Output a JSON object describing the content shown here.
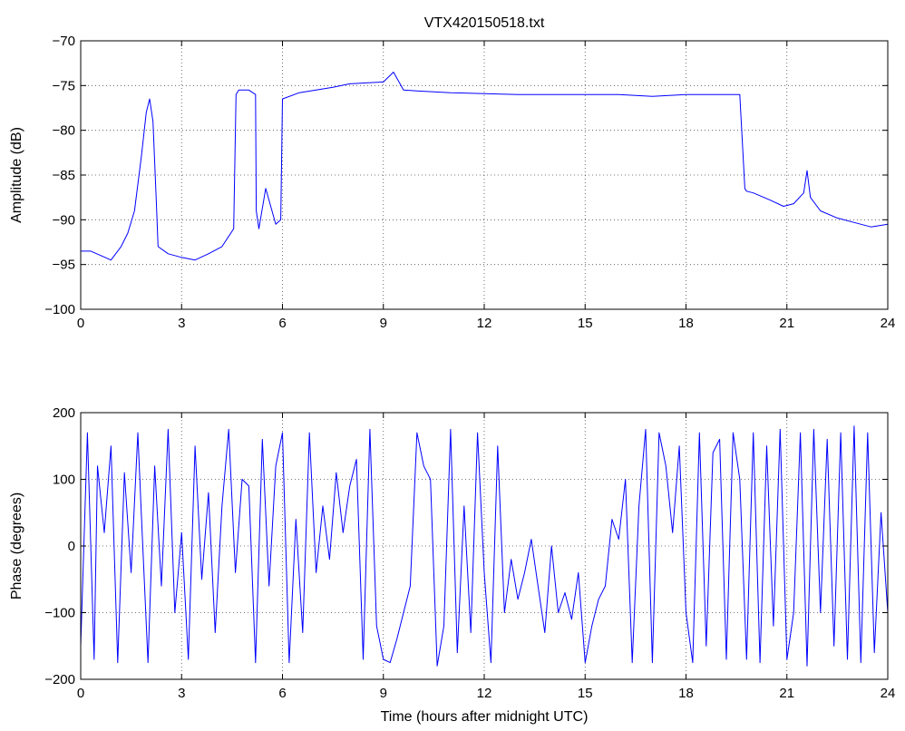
{
  "chart_data": [
    {
      "type": "line",
      "title": "VTX420150518.txt",
      "xlabel": "",
      "ylabel": "Amplitude (dB)",
      "xlim": [
        0,
        24
      ],
      "ylim": [
        -100,
        -70
      ],
      "x_ticks": [
        "0",
        "3",
        "6",
        "9",
        "12",
        "15",
        "18",
        "21",
        "24"
      ],
      "y_ticks": [
        "-70",
        "-75",
        "-80",
        "-85",
        "-90",
        "-95",
        "-100"
      ],
      "grid": true,
      "series_color": "#0000ff",
      "series": [
        {
          "x": [
            0,
            0.3,
            0.6,
            0.9,
            1.2,
            1.4,
            1.6,
            1.8,
            1.95,
            2.05,
            2.15,
            2.25,
            2.3,
            2.6,
            3.0,
            3.4,
            3.8,
            4.2,
            4.55,
            4.62,
            4.7,
            5.0,
            5.2,
            5.22,
            5.3,
            5.5,
            5.8,
            5.95,
            6.0,
            6.5,
            7.0,
            7.5,
            8.0,
            8.5,
            9.0,
            9.3,
            9.6,
            10.0,
            11.0,
            12.0,
            13.0,
            14.0,
            15.0,
            16.0,
            17.0,
            18.0,
            19.0,
            19.6,
            19.75,
            19.8,
            20.0,
            20.5,
            20.9,
            21.2,
            21.5,
            21.6,
            21.7,
            22.0,
            22.5,
            23.0,
            23.5,
            24.0
          ],
          "y": [
            -93.5,
            -93.5,
            -94.0,
            -94.5,
            -93.0,
            -91.5,
            -89.0,
            -83.0,
            -78.0,
            -76.5,
            -79.0,
            -88.0,
            -93.0,
            -93.8,
            -94.2,
            -94.5,
            -93.8,
            -93.0,
            -91.0,
            -76.0,
            -75.5,
            -75.5,
            -76.0,
            -89.0,
            -91.0,
            -86.5,
            -90.5,
            -90.0,
            -76.5,
            -75.8,
            -75.5,
            -75.2,
            -74.8,
            -74.7,
            -74.6,
            -73.5,
            -75.5,
            -75.6,
            -75.8,
            -75.9,
            -76.0,
            -76.0,
            -76.0,
            -76.0,
            -76.2,
            -76.0,
            -76.0,
            -76.0,
            -86.5,
            -86.8,
            -87.0,
            -87.8,
            -88.5,
            -88.2,
            -87.0,
            -84.5,
            -87.5,
            -89.0,
            -89.8,
            -90.3,
            -90.8,
            -90.5
          ]
        }
      ]
    },
    {
      "type": "line",
      "title": "",
      "xlabel": "Time (hours after midnight UTC)",
      "ylabel": "Phase (degrees)",
      "xlim": [
        0,
        24
      ],
      "ylim": [
        -200,
        200
      ],
      "x_ticks": [
        "0",
        "3",
        "6",
        "9",
        "12",
        "15",
        "18",
        "21",
        "24"
      ],
      "y_ticks": [
        "200",
        "100",
        "0",
        "-100",
        "-200"
      ],
      "grid": true,
      "series_color": "#0000ff",
      "series": [
        {
          "x": [
            0,
            0.2,
            0.4,
            0.5,
            0.7,
            0.9,
            1.1,
            1.3,
            1.5,
            1.7,
            1.8,
            2.0,
            2.2,
            2.4,
            2.6,
            2.8,
            3.0,
            3.2,
            3.4,
            3.6,
            3.8,
            4.0,
            4.2,
            4.4,
            4.6,
            4.8,
            5.0,
            5.2,
            5.4,
            5.6,
            5.8,
            6.0,
            6.2,
            6.4,
            6.6,
            6.8,
            7.0,
            7.2,
            7.4,
            7.6,
            7.8,
            8.0,
            8.2,
            8.4,
            8.6,
            8.8,
            9.0,
            9.2,
            9.4,
            9.6,
            9.8,
            10.0,
            10.2,
            10.4,
            10.6,
            10.8,
            11.0,
            11.2,
            11.4,
            11.6,
            11.8,
            12.0,
            12.2,
            12.4,
            12.6,
            12.8,
            13.0,
            13.2,
            13.4,
            13.6,
            13.8,
            14.0,
            14.2,
            14.4,
            14.6,
            14.8,
            15.0,
            15.2,
            15.4,
            15.6,
            15.8,
            16.0,
            16.2,
            16.4,
            16.6,
            16.8,
            17.0,
            17.2,
            17.4,
            17.6,
            17.8,
            18.0,
            18.2,
            18.4,
            18.6,
            18.8,
            19.0,
            19.2,
            19.4,
            19.6,
            19.8,
            20.0,
            20.2,
            20.4,
            20.6,
            20.8,
            21.0,
            21.2,
            21.4,
            21.6,
            21.8,
            22.0,
            22.2,
            22.4,
            22.6,
            22.8,
            23.0,
            23.2,
            23.4,
            23.6,
            23.8,
            24.0
          ],
          "y": [
            -150,
            170,
            -170,
            120,
            20,
            150,
            -175,
            110,
            -40,
            170,
            50,
            -175,
            120,
            -60,
            175,
            -100,
            20,
            -170,
            150,
            -50,
            80,
            -130,
            60,
            175,
            -40,
            100,
            90,
            -175,
            160,
            -60,
            120,
            170,
            -175,
            40,
            -130,
            170,
            -40,
            60,
            -20,
            110,
            20,
            90,
            130,
            -170,
            175,
            -120,
            -170,
            -175,
            -140,
            -100,
            -60,
            170,
            120,
            100,
            -180,
            -120,
            175,
            -160,
            60,
            -130,
            170,
            -40,
            -175,
            150,
            -100,
            -20,
            -80,
            -40,
            10,
            -60,
            -130,
            0,
            -100,
            -70,
            -110,
            -40,
            -175,
            -120,
            -80,
            -60,
            40,
            10,
            100,
            -175,
            60,
            175,
            -175,
            170,
            120,
            20,
            150,
            -100,
            -175,
            170,
            -150,
            140,
            160,
            -170,
            170,
            100,
            -170,
            170,
            -175,
            150,
            -120,
            175,
            -170,
            -100,
            170,
            -180,
            175,
            -100,
            160,
            -150,
            170,
            -170,
            180,
            -175,
            170,
            -160,
            50,
            -100
          ]
        }
      ]
    }
  ]
}
